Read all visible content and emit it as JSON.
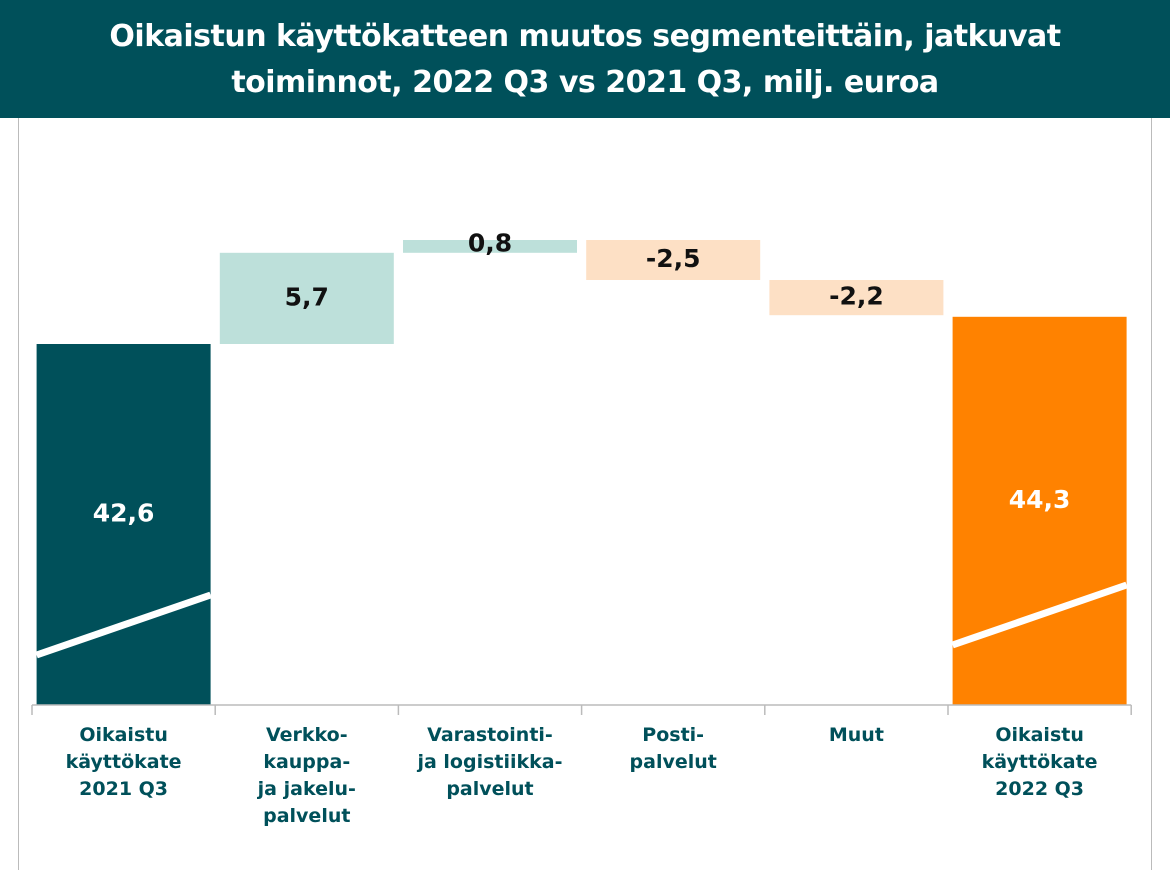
{
  "chart_data": {
    "type": "waterfall",
    "title": "Oikaistun käyttökatteen muutos segmenteittäin, jatkuvat\ntoiminnot, 2022 Q3 vs 2021 Q3, milj. euroa",
    "categories": [
      "Oikaistu\nkäyttökate\n2021 Q3",
      "Verkko-\nkauppa-\nja jakelu-\npalvelut",
      "Varastointi-\nja logistiikka-\npalvelut",
      "Posti-\npalvelut",
      "Muut",
      "Oikaistu\nkäyttökate\n2022 Q3"
    ],
    "values": [
      42.6,
      5.7,
      0.8,
      -2.5,
      -2.2,
      44.3
    ],
    "value_labels": [
      "42,6",
      "5,7",
      "0,8",
      "-2,5",
      "-2,2",
      "44,3"
    ],
    "measures": [
      "total",
      "relative",
      "relative",
      "relative",
      "relative",
      "total"
    ],
    "colors": [
      "#00505a",
      "#bde0da",
      "#bde0da",
      "#fde0c5",
      "#fde0c5",
      "#ff8200"
    ]
  }
}
